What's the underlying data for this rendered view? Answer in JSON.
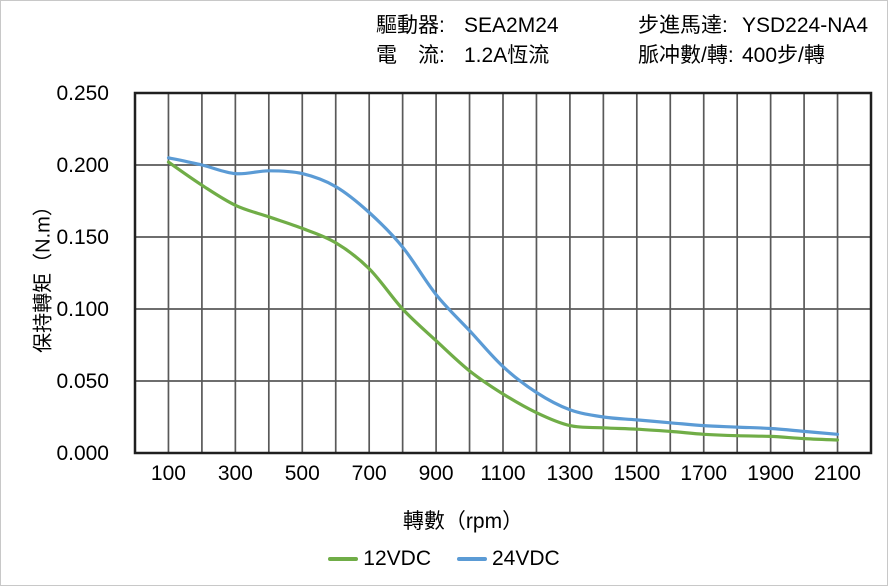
{
  "header": {
    "rows": [
      {
        "left_label": "驅動器:",
        "left_value": "SEA2M24",
        "right_label": "步進馬達:",
        "right_value": "YSD224-NA4"
      },
      {
        "left_label": "電　流:",
        "left_value": "1.2A恆流",
        "right_label": "脈冲數/轉:",
        "right_value": "400步/轉"
      }
    ]
  },
  "chart_data": {
    "type": "line",
    "title": "",
    "xlabel": "轉數（rpm）",
    "ylabel": "保持轉矩（N.m）",
    "x": [
      100,
      200,
      300,
      400,
      500,
      600,
      700,
      800,
      900,
      1000,
      1100,
      1200,
      1300,
      1400,
      1500,
      1600,
      1700,
      1800,
      1900,
      2000,
      2100
    ],
    "series": [
      {
        "name": "12VDC",
        "color": "#70AD47",
        "values": [
          0.202,
          0.186,
          0.172,
          0.164,
          0.156,
          0.146,
          0.128,
          0.1,
          0.078,
          0.057,
          0.041,
          0.028,
          0.019,
          0.0175,
          0.0165,
          0.015,
          0.013,
          0.012,
          0.0115,
          0.01,
          0.009
        ]
      },
      {
        "name": "24VDC",
        "color": "#5B9BD5",
        "values": [
          0.205,
          0.2,
          0.194,
          0.196,
          0.194,
          0.185,
          0.167,
          0.143,
          0.11,
          0.085,
          0.06,
          0.042,
          0.03,
          0.025,
          0.023,
          0.021,
          0.019,
          0.018,
          0.017,
          0.015,
          0.013
        ]
      }
    ],
    "xlim": [
      0,
      2200
    ],
    "ylim": [
      0,
      0.25
    ],
    "x_grid_step": 100,
    "x_ticks": [
      100,
      300,
      500,
      700,
      900,
      1100,
      1300,
      1500,
      1700,
      1900,
      2100
    ],
    "x_tick_labels": [
      "100",
      "300",
      "500",
      "700",
      "900",
      "1100",
      "1300",
      "1500",
      "1700",
      "1900",
      "2100"
    ],
    "y_ticks": [
      0.0,
      0.05,
      0.1,
      0.15,
      0.2,
      0.25
    ],
    "y_tick_labels": [
      "0.000",
      "0.050",
      "0.100",
      "0.150",
      "0.200",
      "0.250"
    ],
    "grid": true,
    "legend_position": "bottom",
    "gridline_color": "#595959",
    "border_color": "#1f1f1f",
    "text_color": "#000000",
    "background": "#ffffff"
  }
}
